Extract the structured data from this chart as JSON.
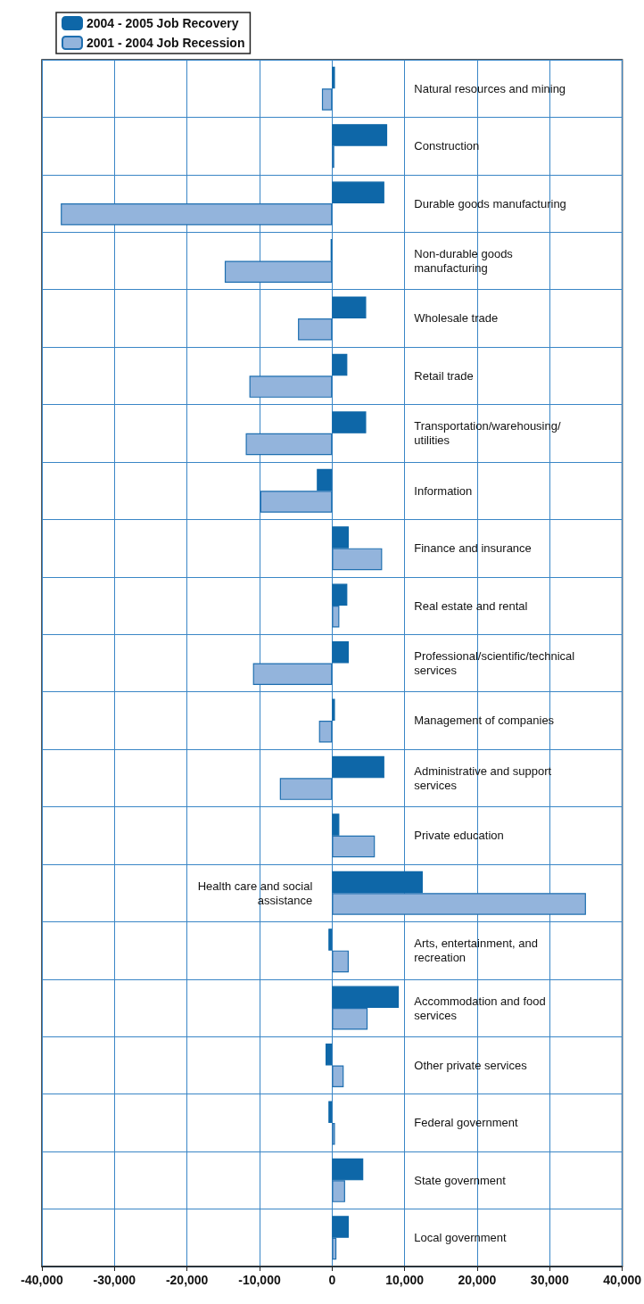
{
  "chart_data": {
    "type": "bar",
    "orientation": "horizontal",
    "categories": [
      "Natural resources and mining",
      "Construction",
      "Durable goods manufacturing",
      "Non-durable goods manufacturing",
      "Wholesale trade",
      "Retail trade",
      "Transportation/warehousing/utilities",
      "Information",
      "Finance and insurance",
      "Real estate and rental",
      "Professional/scientific/technical services",
      "Management of companies",
      "Administrative and support services",
      "Private education",
      "Health care and social assistance",
      "Arts, entertainment, and recreation",
      "Accommodation and food services",
      "Other private services",
      "Federal government",
      "State government",
      "Local government"
    ],
    "series": [
      {
        "name": "2004 - 2005 Job Recovery",
        "color": "#0e67a8",
        "values": [
          400,
          7600,
          7200,
          -200,
          4700,
          2100,
          4700,
          -2100,
          2300,
          2100,
          2300,
          400,
          7200,
          1000,
          12500,
          -500,
          9200,
          -900,
          -500,
          4300,
          2300
        ]
      },
      {
        "name": "2001 - 2004 Job Recession",
        "color": "#93b4dc",
        "values": [
          -1400,
          300,
          -37400,
          -14800,
          -4700,
          -11400,
          -11900,
          -9900,
          6900,
          1000,
          -10900,
          -1800,
          -7200,
          5900,
          35000,
          2300,
          4900,
          1600,
          400,
          1800,
          600
        ]
      }
    ],
    "xlim": [
      -40000,
      40000
    ],
    "xticks": [
      {
        "value": -40000,
        "label": "-40,000"
      },
      {
        "value": -30000,
        "label": "-30,000"
      },
      {
        "value": -20000,
        "label": "-20,000"
      },
      {
        "value": -10000,
        "label": "-10,000"
      },
      0,
      {
        "value": 10000,
        "label": "10,000"
      },
      {
        "value": 20000,
        "label": "20,000"
      },
      {
        "value": 30000,
        "label": "30,000"
      },
      {
        "value": 40000,
        "label": "40,000"
      }
    ],
    "grid": true,
    "legend": "top left"
  }
}
